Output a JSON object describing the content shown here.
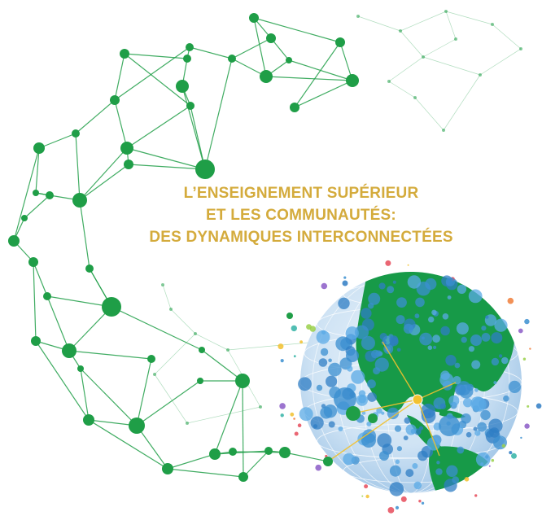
{
  "title": {
    "line1": "L’ENSEIGNEMENT SUPÉRIEUR",
    "line2": "ET LES COMMUNAUTÉS:",
    "line3": "DES DYNAMIQUES INTERCONNECTÉES"
  },
  "illustration": {
    "network_name": "green-node-network",
    "globe_name": "earth-globe",
    "colors": {
      "network": "#1f9e47",
      "title": "#d4ab3c",
      "ocean": "#3b8fd0",
      "land": "#179a48",
      "highlight_node": "#f2c12e"
    }
  }
}
